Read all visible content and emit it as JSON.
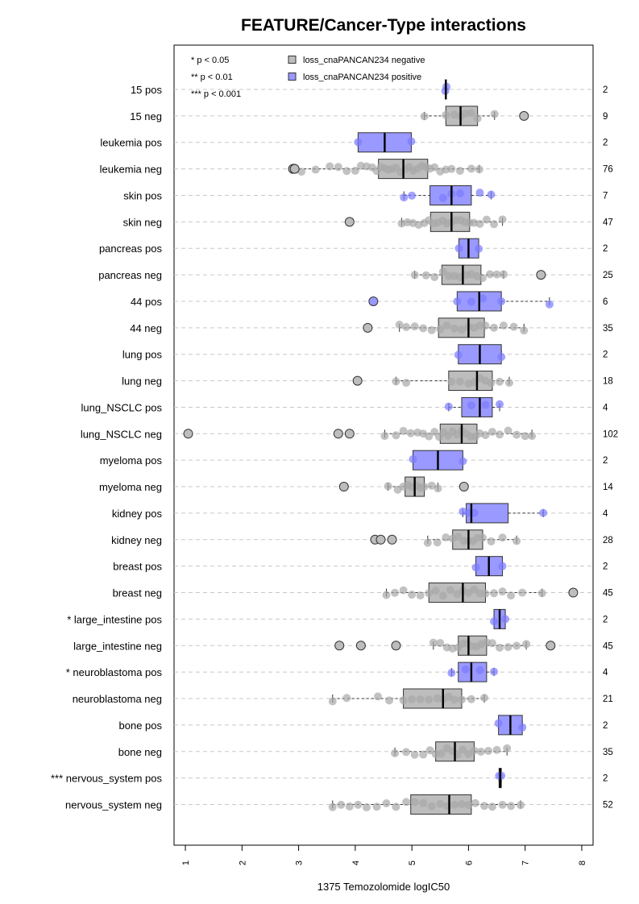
{
  "chart_data": {
    "type": "boxplot",
    "title": "FEATURE/Cancer-Type interactions",
    "xlabel": "1375 Temozolomide logIC50",
    "xlim": [
      0.8,
      8.2
    ],
    "xticks": [
      1,
      2,
      3,
      4,
      5,
      6,
      7,
      8
    ],
    "legend": {
      "placement": "top-left",
      "significance": [
        "* p < 0.05",
        "** p < 0.01",
        "*** p < 0.001"
      ],
      "series": [
        {
          "name": "loss_cnaPANCAN234 negative",
          "color": "#bdbdbd"
        },
        {
          "name": "loss_cnaPANCAN234 positive",
          "color": "#9999ff"
        }
      ]
    },
    "colors": {
      "negative_box": "#bdbdbd",
      "positive_box": "#9999ff",
      "negative_point": "#a8a8a8",
      "positive_point": "#7a7aff",
      "grid": "#c8c8c8"
    },
    "groups": [
      {
        "label": "15 pos",
        "n": "2",
        "series": "positive",
        "whisker_lo": 5.59,
        "q1": 5.59,
        "median": 5.6,
        "q3": 5.61,
        "whisker_hi": 5.61,
        "points": [
          5.59,
          5.61
        ],
        "outliers": []
      },
      {
        "label": "15 neg",
        "n": "9",
        "series": "negative",
        "whisker_lo": 5.22,
        "q1": 5.6,
        "median": 5.86,
        "q3": 6.16,
        "whisker_hi": 6.46,
        "points": [
          5.22,
          5.6,
          5.75,
          5.86,
          5.95,
          6.05,
          6.16,
          6.46
        ],
        "outliers": [
          6.98
        ]
      },
      {
        "label": "leukemia pos",
        "n": "2",
        "series": "positive",
        "whisker_lo": 4.05,
        "q1": 4.05,
        "median": 4.52,
        "q3": 4.99,
        "whisker_hi": 4.99,
        "points": [
          4.05,
          4.99
        ],
        "outliers": []
      },
      {
        "label": "leukemia neg",
        "n": "76",
        "series": "negative",
        "whisker_lo": 2.92,
        "q1": 4.41,
        "median": 4.85,
        "q3": 5.28,
        "whisker_hi": 6.19,
        "points": [
          2.92,
          3.05,
          3.3,
          3.55,
          3.7,
          3.85,
          4.0,
          4.1,
          4.2,
          4.3,
          4.38,
          4.45,
          4.52,
          4.58,
          4.65,
          4.72,
          4.8,
          4.88,
          4.95,
          5.02,
          5.1,
          5.18,
          5.25,
          5.32,
          5.4,
          5.5,
          5.6,
          5.7,
          5.85,
          6.05,
          6.19
        ],
        "outliers": [
          2.9,
          2.93
        ]
      },
      {
        "label": "skin pos",
        "n": "7",
        "series": "positive",
        "whisker_lo": 4.86,
        "q1": 5.32,
        "median": 5.7,
        "q3": 6.05,
        "whisker_hi": 6.4,
        "points": [
          4.86,
          5.0,
          5.55,
          5.7,
          5.85,
          6.2,
          6.4
        ],
        "outliers": []
      },
      {
        "label": "skin neg",
        "n": "47",
        "series": "negative",
        "whisker_lo": 4.82,
        "q1": 5.33,
        "median": 5.7,
        "q3": 6.02,
        "whisker_hi": 6.6,
        "points": [
          4.82,
          4.92,
          5.02,
          5.12,
          5.22,
          5.3,
          5.38,
          5.46,
          5.55,
          5.62,
          5.7,
          5.78,
          5.86,
          5.94,
          6.02,
          6.1,
          6.2,
          6.32,
          6.45,
          6.6
        ],
        "outliers": [
          3.9
        ]
      },
      {
        "label": "pancreas pos",
        "n": "2",
        "series": "positive",
        "whisker_lo": 5.83,
        "q1": 5.83,
        "median": 6.0,
        "q3": 6.18,
        "whisker_hi": 6.18,
        "points": [
          5.83,
          6.18
        ],
        "outliers": []
      },
      {
        "label": "pancreas neg",
        "n": "25",
        "series": "negative",
        "whisker_lo": 5.05,
        "q1": 5.53,
        "median": 5.9,
        "q3": 6.22,
        "whisker_hi": 6.62,
        "points": [
          5.05,
          5.25,
          5.4,
          5.55,
          5.65,
          5.75,
          5.85,
          5.95,
          6.05,
          6.15,
          6.25,
          6.38,
          6.5,
          6.62
        ],
        "outliers": [
          7.28
        ]
      },
      {
        "label": "44 pos",
        "n": "6",
        "series": "positive",
        "whisker_lo": 5.8,
        "q1": 5.8,
        "median": 6.19,
        "q3": 6.58,
        "whisker_hi": 7.43,
        "points": [
          5.8,
          6.05,
          6.25,
          6.58,
          7.43
        ],
        "outliers": [
          4.32
        ]
      },
      {
        "label": "44 neg",
        "n": "35",
        "series": "negative",
        "whisker_lo": 4.78,
        "q1": 5.47,
        "median": 6.0,
        "q3": 6.28,
        "whisker_hi": 6.98,
        "points": [
          4.78,
          4.9,
          5.05,
          5.2,
          5.35,
          5.5,
          5.62,
          5.75,
          5.88,
          6.0,
          6.1,
          6.2,
          6.3,
          6.45,
          6.62,
          6.8,
          6.98
        ],
        "outliers": [
          4.22
        ]
      },
      {
        "label": "lung pos",
        "n": "2",
        "series": "positive",
        "whisker_lo": 5.82,
        "q1": 5.82,
        "median": 6.2,
        "q3": 6.58,
        "whisker_hi": 6.58,
        "points": [
          5.82,
          6.58
        ],
        "outliers": []
      },
      {
        "label": "lung neg",
        "n": "18",
        "series": "negative",
        "whisker_lo": 4.72,
        "q1": 5.65,
        "median": 6.15,
        "q3": 6.42,
        "whisker_hi": 6.72,
        "points": [
          4.72,
          4.9,
          5.7,
          5.85,
          6.0,
          6.1,
          6.2,
          6.3,
          6.4,
          6.55,
          6.72
        ],
        "outliers": [
          4.04
        ]
      },
      {
        "label": "lung_NSCLC pos",
        "n": "4",
        "series": "positive",
        "whisker_lo": 5.65,
        "q1": 5.88,
        "median": 6.2,
        "q3": 6.42,
        "whisker_hi": 6.55,
        "points": [
          5.65,
          6.05,
          6.3,
          6.55
        ],
        "outliers": []
      },
      {
        "label": "lung_NSCLC neg",
        "n": "102",
        "series": "negative",
        "whisker_lo": 4.52,
        "q1": 5.5,
        "median": 5.88,
        "q3": 6.15,
        "whisker_hi": 7.12,
        "points": [
          4.52,
          4.72,
          4.85,
          4.98,
          5.1,
          5.2,
          5.3,
          5.4,
          5.48,
          5.56,
          5.64,
          5.72,
          5.8,
          5.88,
          5.96,
          6.04,
          6.12,
          6.2,
          6.3,
          6.42,
          6.55,
          6.7,
          6.85,
          7.0,
          7.12
        ],
        "outliers": [
          1.05,
          3.7,
          3.9
        ]
      },
      {
        "label": "myeloma pos",
        "n": "2",
        "series": "positive",
        "whisker_lo": 5.02,
        "q1": 5.02,
        "median": 5.46,
        "q3": 5.9,
        "whisker_hi": 5.9,
        "points": [
          5.02,
          5.9
        ],
        "outliers": []
      },
      {
        "label": "myeloma neg",
        "n": "14",
        "series": "negative",
        "whisker_lo": 4.58,
        "q1": 4.88,
        "median": 5.05,
        "q3": 5.22,
        "whisker_hi": 5.46,
        "points": [
          4.58,
          4.75,
          4.85,
          4.93,
          5.0,
          5.08,
          5.15,
          5.22,
          5.35,
          5.46
        ],
        "outliers": [
          3.8,
          5.92
        ]
      },
      {
        "label": "kidney pos",
        "n": "4",
        "series": "positive",
        "whisker_lo": 5.9,
        "q1": 5.96,
        "median": 6.05,
        "q3": 6.7,
        "whisker_hi": 7.32,
        "points": [
          5.9,
          6.0,
          6.1,
          7.32
        ],
        "outliers": []
      },
      {
        "label": "kidney neg",
        "n": "28",
        "series": "negative",
        "whisker_lo": 5.28,
        "q1": 5.72,
        "median": 6.0,
        "q3": 6.25,
        "whisker_hi": 6.85,
        "points": [
          5.28,
          5.45,
          5.6,
          5.72,
          5.82,
          5.92,
          6.0,
          6.08,
          6.16,
          6.25,
          6.4,
          6.6,
          6.85
        ],
        "outliers": [
          4.35,
          4.45,
          4.65
        ]
      },
      {
        "label": "breast pos",
        "n": "2",
        "series": "positive",
        "whisker_lo": 6.13,
        "q1": 6.13,
        "median": 6.36,
        "q3": 6.6,
        "whisker_hi": 6.6,
        "points": [
          6.13,
          6.6
        ],
        "outliers": []
      },
      {
        "label": "breast neg",
        "n": "45",
        "series": "negative",
        "whisker_lo": 4.55,
        "q1": 5.3,
        "median": 5.9,
        "q3": 6.3,
        "whisker_hi": 7.3,
        "points": [
          4.55,
          4.7,
          4.85,
          5.0,
          5.15,
          5.3,
          5.42,
          5.55,
          5.68,
          5.8,
          5.9,
          6.0,
          6.1,
          6.2,
          6.3,
          6.45,
          6.6,
          6.75,
          6.95,
          7.3
        ],
        "outliers": [
          7.85
        ]
      },
      {
        "label": "* large_intestine pos",
        "n": "2",
        "series": "positive",
        "whisker_lo": 6.45,
        "q1": 6.45,
        "median": 6.55,
        "q3": 6.65,
        "whisker_hi": 6.65,
        "points": [
          6.45,
          6.65
        ],
        "outliers": []
      },
      {
        "label": "large_intestine neg",
        "n": "45",
        "series": "negative",
        "whisker_lo": 5.38,
        "q1": 5.82,
        "median": 6.0,
        "q3": 6.32,
        "whisker_hi": 7.02,
        "points": [
          5.38,
          5.5,
          5.62,
          5.72,
          5.82,
          5.9,
          5.98,
          6.06,
          6.14,
          6.22,
          6.32,
          6.42,
          6.55,
          6.7,
          6.85,
          7.02
        ],
        "outliers": [
          3.72,
          4.1,
          4.72,
          7.45
        ]
      },
      {
        "label": "* neuroblastoma pos",
        "n": "4",
        "series": "positive",
        "whisker_lo": 5.7,
        "q1": 5.82,
        "median": 6.05,
        "q3": 6.32,
        "whisker_hi": 6.45,
        "points": [
          5.7,
          5.95,
          6.2,
          6.45
        ],
        "outliers": []
      },
      {
        "label": "neuroblastoma neg",
        "n": "21",
        "series": "negative",
        "whisker_lo": 3.6,
        "q1": 4.85,
        "median": 5.55,
        "q3": 5.88,
        "whisker_hi": 6.28,
        "points": [
          3.6,
          3.85,
          4.4,
          4.6,
          4.85,
          5.0,
          5.15,
          5.3,
          5.45,
          5.55,
          5.65,
          5.75,
          5.88,
          6.05,
          6.28
        ],
        "outliers": []
      },
      {
        "label": "bone pos",
        "n": "2",
        "series": "positive",
        "whisker_lo": 6.53,
        "q1": 6.53,
        "median": 6.74,
        "q3": 6.95,
        "whisker_hi": 6.95,
        "points": [
          6.53,
          6.95
        ],
        "outliers": []
      },
      {
        "label": "bone neg",
        "n": "35",
        "series": "negative",
        "whisker_lo": 4.7,
        "q1": 5.42,
        "median": 5.76,
        "q3": 6.1,
        "whisker_hi": 6.68,
        "points": [
          4.7,
          4.9,
          5.05,
          5.2,
          5.32,
          5.42,
          5.52,
          5.62,
          5.72,
          5.8,
          5.9,
          6.0,
          6.1,
          6.22,
          6.35,
          6.5,
          6.68
        ],
        "outliers": []
      },
      {
        "label": "*** nervous_system pos",
        "n": "2",
        "series": "positive",
        "whisker_lo": 6.54,
        "q1": 6.54,
        "median": 6.56,
        "q3": 6.58,
        "whisker_hi": 6.58,
        "points": [
          6.54,
          6.58
        ],
        "outliers": []
      },
      {
        "label": "nervous_system neg",
        "n": "52",
        "series": "negative",
        "whisker_lo": 3.6,
        "q1": 4.98,
        "median": 5.66,
        "q3": 6.05,
        "whisker_hi": 6.92,
        "points": [
          3.6,
          3.75,
          3.9,
          4.05,
          4.2,
          4.38,
          4.55,
          4.72,
          4.9,
          5.05,
          5.2,
          5.35,
          5.5,
          5.62,
          5.75,
          5.88,
          6.0,
          6.12,
          6.28,
          6.42,
          6.6,
          6.75,
          6.92
        ],
        "outliers": []
      }
    ]
  }
}
